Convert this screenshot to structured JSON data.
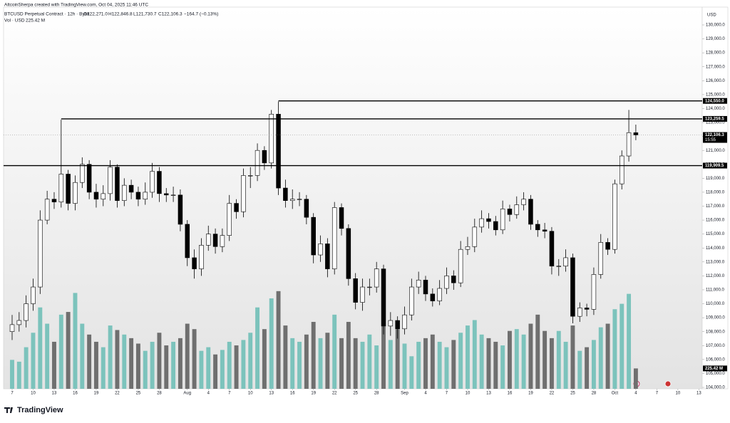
{
  "header": {
    "credit": "AltcoinSherpa created with TradingView.com, Oct 04, 2025 11:46 UTC",
    "symbol": "BTCUSD Perpetual Contract · 12h · Bybit",
    "ohlc": [
      "O122,271.0",
      "H122,846.8",
      "L121,730.7",
      "C122,106.3",
      "−164.7 (−0.13%)"
    ],
    "volume": "Vol · USD",
    "volume_value": "225.42 M"
  },
  "brand": "TradingView",
  "chart_data": {
    "type": "candlestick",
    "currency": "USD",
    "ylim": [
      103898,
      131277
    ],
    "y2lim": [
      0,
      4220
    ],
    "xlim": [
      -1.22,
      98.47
    ],
    "up_color": "#ffffff",
    "down_color": "#000000",
    "vol_up_color": "#7cc3bc",
    "vol_down_color": "#6f6f6f",
    "yticks": [
      {
        "value": 104000,
        "label": "104,000.0"
      },
      {
        "value": 105000,
        "label": "105,000.0"
      },
      {
        "value": 106000,
        "label": "106,000.0"
      },
      {
        "value": 107000,
        "label": "107,000.0"
      },
      {
        "value": 108000,
        "label": "108,000.0"
      },
      {
        "value": 109000,
        "label": "109,000.0"
      },
      {
        "value": 110000,
        "label": "110,000.0"
      },
      {
        "value": 111000,
        "label": "111,000.0"
      },
      {
        "value": 112000,
        "label": "112,000.0"
      },
      {
        "value": 113000,
        "label": "113,000.0"
      },
      {
        "value": 114000,
        "label": "114,000.0"
      },
      {
        "value": 115000,
        "label": "115,000.0"
      },
      {
        "value": 116000,
        "label": "116,000.0"
      },
      {
        "value": 117000,
        "label": "117,000.0"
      },
      {
        "value": 118000,
        "label": "118,000.0"
      },
      {
        "value": 119000,
        "label": "119,000.0"
      },
      {
        "value": 120000,
        "label": "120,000.0"
      },
      {
        "value": 121000,
        "label": "121,000.0"
      },
      {
        "value": 122000,
        "label": "122,000.0"
      },
      {
        "value": 123000,
        "label": "123,000.0"
      },
      {
        "value": 124000,
        "label": "124,000.0"
      },
      {
        "value": 125000,
        "label": "125,000.0"
      },
      {
        "value": 126000,
        "label": "126,000.0"
      },
      {
        "value": 127000,
        "label": "127,000.0"
      },
      {
        "value": 128000,
        "label": "128,000.0"
      },
      {
        "value": 129000,
        "label": "129,000.0"
      },
      {
        "value": 130000,
        "label": "130,000.0"
      }
    ],
    "xticks": [
      {
        "value": 0,
        "label": "7"
      },
      {
        "value": 3,
        "label": "10"
      },
      {
        "value": 6,
        "label": "13"
      },
      {
        "value": 9,
        "label": "16"
      },
      {
        "value": 12,
        "label": "19"
      },
      {
        "value": 15,
        "label": "22"
      },
      {
        "value": 18,
        "label": "25"
      },
      {
        "value": 21,
        "label": "28"
      },
      {
        "value": 25,
        "label": "Aug"
      },
      {
        "value": 28,
        "label": "4"
      },
      {
        "value": 31,
        "label": "7"
      },
      {
        "value": 34,
        "label": "10"
      },
      {
        "value": 37,
        "label": "13"
      },
      {
        "value": 40,
        "label": "16"
      },
      {
        "value": 43,
        "label": "19"
      },
      {
        "value": 46,
        "label": "22"
      },
      {
        "value": 49,
        "label": "25"
      },
      {
        "value": 52,
        "label": "28"
      },
      {
        "value": 56,
        "label": "Sep"
      },
      {
        "value": 59,
        "label": "4"
      },
      {
        "value": 62,
        "label": "7"
      },
      {
        "value": 65,
        "label": "10"
      },
      {
        "value": 68,
        "label": "13"
      },
      {
        "value": 71,
        "label": "16"
      },
      {
        "value": 74,
        "label": "19"
      },
      {
        "value": 77,
        "label": "22"
      },
      {
        "value": 80,
        "label": "25"
      },
      {
        "value": 83,
        "label": "28"
      },
      {
        "value": 86,
        "label": "Oct"
      },
      {
        "value": 89,
        "label": "4"
      },
      {
        "value": 92,
        "label": "7"
      },
      {
        "value": 95,
        "label": "10"
      },
      {
        "value": 98,
        "label": "13"
      }
    ],
    "open": [
      108000,
      108500,
      108800,
      110000,
      111200,
      116000,
      117500,
      117300,
      119300,
      117200,
      118700,
      120000,
      118000,
      117500,
      117900,
      119800,
      117400,
      118500,
      118000,
      117500,
      118000,
      119500,
      117900,
      117800,
      117800,
      115700,
      113300,
      112500,
      114200,
      115000,
      114100,
      114900,
      117200,
      116600,
      119200,
      119200,
      121000,
      120100,
      123600,
      118300,
      117400,
      117500,
      117500,
      116200,
      113500,
      114300,
      112500,
      116900,
      115400,
      111800,
      110100,
      111200,
      111200,
      112500,
      108400,
      108800,
      108200,
      109200,
      111200,
      111700,
      110700,
      110200,
      111100,
      112000,
      111500,
      113900,
      114100,
      115500,
      116100,
      115900,
      115300,
      116800,
      116400,
      117100,
      117500,
      115700,
      115300,
      115200,
      112700,
      112700,
      113300,
      109100,
      109700,
      109600,
      112100,
      114400,
      113900,
      118600,
      120600,
      122271.0
    ],
    "high": [
      109200,
      109400,
      110600,
      111800,
      116700,
      118100,
      118000,
      123200,
      119600,
      119200,
      120500,
      120300,
      118600,
      118500,
      120300,
      120000,
      119000,
      118900,
      118400,
      118700,
      120100,
      119800,
      118300,
      118400,
      118200,
      116000,
      113900,
      114700,
      115600,
      115400,
      115400,
      117800,
      117500,
      119700,
      119800,
      121500,
      121300,
      123900,
      124500,
      118900,
      118200,
      118000,
      117800,
      116500,
      114900,
      114700,
      117300,
      117200,
      115700,
      112200,
      111800,
      111800,
      113000,
      112800,
      109400,
      109100,
      109800,
      111800,
      112300,
      112000,
      111100,
      111700,
      112600,
      112400,
      114500,
      114800,
      116100,
      116700,
      116500,
      116300,
      117400,
      117100,
      117700,
      118000,
      117800,
      116000,
      115800,
      115500,
      113200,
      113900,
      113600,
      110100,
      110000,
      112600,
      115000,
      114700,
      118900,
      121000,
      123900,
      122846.8
    ],
    "low": [
      107400,
      108000,
      108300,
      109500,
      110700,
      115700,
      116800,
      116900,
      116700,
      116700,
      118300,
      117500,
      116900,
      117000,
      117400,
      116900,
      117000,
      117500,
      117000,
      117100,
      117600,
      117300,
      117300,
      117300,
      115200,
      112700,
      111800,
      112000,
      113800,
      113600,
      113700,
      114500,
      116100,
      116200,
      118300,
      118800,
      119600,
      119700,
      117800,
      116900,
      116800,
      117000,
      115700,
      112900,
      113000,
      111900,
      112100,
      114900,
      111300,
      109600,
      109500,
      110600,
      110800,
      107800,
      107700,
      107500,
      107800,
      108800,
      110700,
      110200,
      109800,
      109900,
      110700,
      111000,
      111200,
      113500,
      113700,
      115100,
      115400,
      114900,
      115000,
      115900,
      116100,
      116700,
      115300,
      114800,
      114700,
      112100,
      112000,
      112300,
      108600,
      108700,
      109100,
      109200,
      111800,
      113500,
      113600,
      118200,
      120200,
      121730.7
    ],
    "close": [
      108500,
      108800,
      110000,
      111200,
      116000,
      117500,
      117300,
      119300,
      117200,
      118700,
      120000,
      118000,
      117500,
      117900,
      119800,
      117400,
      118500,
      118000,
      117500,
      118000,
      119500,
      117900,
      117800,
      117800,
      115700,
      113300,
      112500,
      114200,
      115000,
      114100,
      114900,
      117200,
      116600,
      119200,
      119200,
      121000,
      120100,
      123600,
      118300,
      117400,
      117500,
      117500,
      116200,
      113500,
      114300,
      112500,
      116900,
      115400,
      111800,
      110100,
      111200,
      111200,
      112500,
      108400,
      108800,
      108200,
      109200,
      111200,
      111700,
      110700,
      110200,
      111100,
      112000,
      111500,
      113900,
      114100,
      115500,
      116100,
      115900,
      115300,
      116800,
      116400,
      117100,
      117500,
      115700,
      115300,
      115200,
      112700,
      112700,
      113300,
      109100,
      109700,
      109600,
      112100,
      114400,
      113900,
      118600,
      120600,
      122271.0,
      122106.3
    ],
    "volume": [
      320,
      300,
      460,
      620,
      900,
      720,
      520,
      820,
      850,
      1060,
      720,
      600,
      520,
      460,
      700,
      650,
      600,
      560,
      500,
      420,
      520,
      620,
      480,
      520,
      560,
      720,
      660,
      420,
      460,
      380,
      430,
      520,
      480,
      540,
      620,
      900,
      660,
      1000,
      1080,
      700,
      560,
      520,
      600,
      740,
      560,
      620,
      820,
      560,
      740,
      560,
      520,
      600,
      480,
      720,
      540,
      660,
      500,
      360,
      520,
      560,
      600,
      520,
      460,
      540,
      620,
      700,
      760,
      600,
      560,
      520,
      480,
      640,
      660,
      600,
      720,
      820,
      640,
      560,
      640,
      520,
      700,
      420,
      460,
      540,
      680,
      720,
      880,
      940,
      1050,
      225.42
    ],
    "volume_value_label": "225.42 M",
    "hlines": [
      {
        "value": 124550,
        "label": "124,550.0",
        "start": 38
      },
      {
        "value": 123259.5,
        "label": "123,259.5",
        "start": 7
      },
      {
        "value": 119909.5,
        "label": "119,909.5",
        "start": -1.22
      }
    ],
    "last_price": {
      "value": 122106.3,
      "label": "122,106.3",
      "countdown": "15:55"
    }
  }
}
